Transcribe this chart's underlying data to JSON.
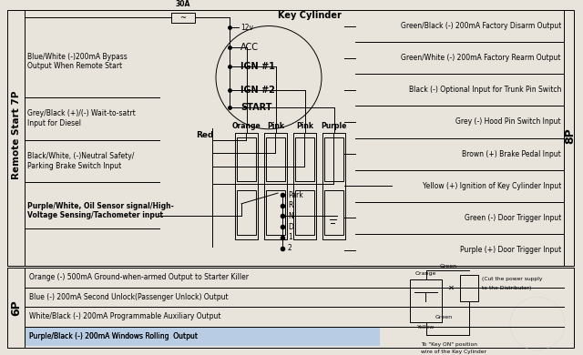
{
  "bg_color": "#e8e4dc",
  "fuse_label": "30A",
  "voltage_label": "12v",
  "key_cylinder_label": "Key Cylinder",
  "key_positions": [
    "ACC",
    "IGN #1",
    "IGN #2",
    "START"
  ],
  "connector_labels": [
    "Orange",
    "Pink",
    "Pink",
    "Purple"
  ],
  "park_positions": [
    "Park",
    "R",
    "N",
    "D",
    "1",
    "2"
  ],
  "left_section_label": "Remote Start 7P",
  "right_section_label": "8P",
  "bottom_section_label": "6P",
  "left_labels": [
    "Blue/White (-)200mA Bypass\nOutput When Remote Start",
    "Grey/Black (+)/(-) Wait-to-satrt\nInput for Diesel",
    "Black/White, (-)Neutral Safety/\nParking Brake Switch Input",
    "Purple/White, Oil Sensor signal/High-\nVoltage Sensing/Tachometer input"
  ],
  "left_bold": [
    false,
    false,
    false,
    true
  ],
  "right_labels": [
    "Green/Black (-) 200mA Factory Disarm Output",
    "Green/White (-) 200mA Factory Rearm Output",
    "Black (-) Optional Input for Trunk Pin Switch",
    "Grey (-) Hood Pin Switch Input",
    "Brown (+) Brake Pedal Input",
    "Yellow (+) Ignition of Key Cylinder Input",
    "Green (-) Door Trigger Input",
    "Purple (+) Door Trigger Input"
  ],
  "bottom_labels": [
    "Orange (-) 500mA Ground-when-armed Output to Starter Killer",
    "Blue (-) 200mA Second Unlock(Passenger Unlock) Output",
    "White/Black (-) 200mA Programmable Auxiliary Output",
    "Purple/Black (-) 200mA Windows Rolling  Output"
  ],
  "red_label": "Red"
}
